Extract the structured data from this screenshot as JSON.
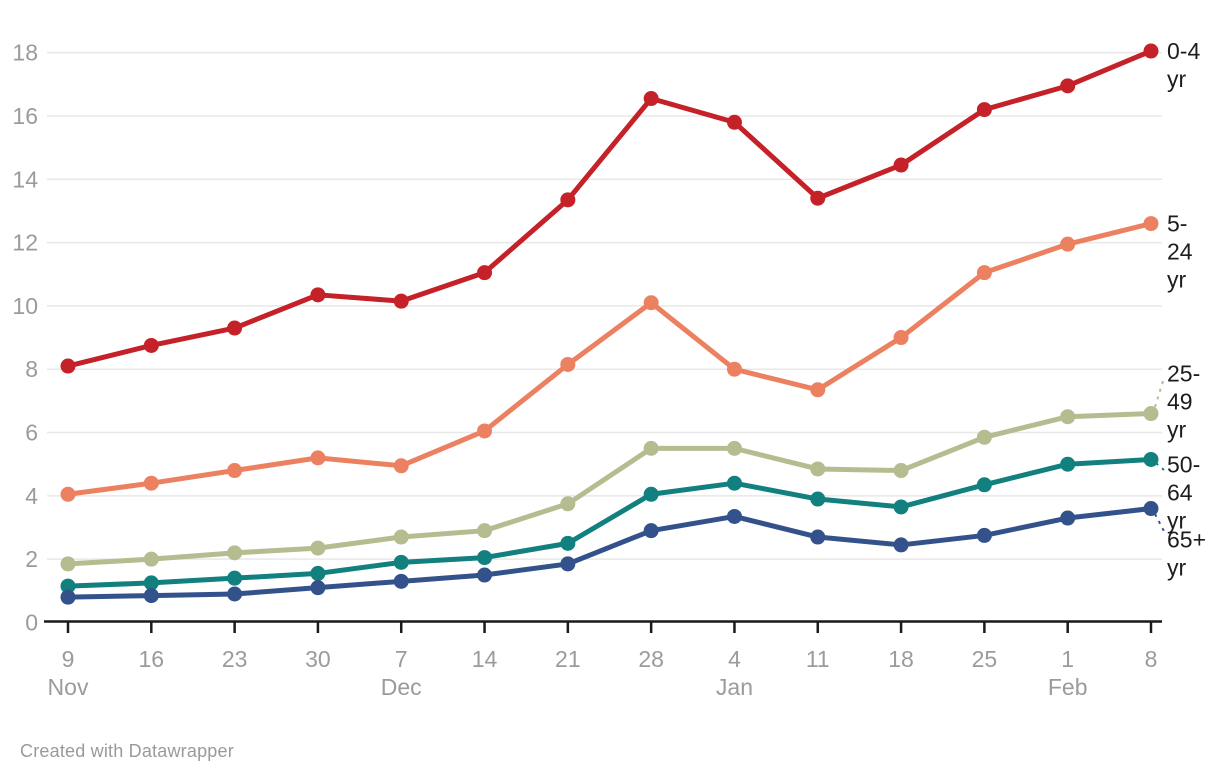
{
  "footer": {
    "credit": "Created with Datawrapper"
  },
  "colors": {
    "grid": "#e8e8e8",
    "axis_line": "#1a1a1a",
    "axis_text": "#9b9b9b",
    "label_text": "#1d1d1d",
    "footer_text": "#9a9a9a",
    "background": "#ffffff"
  },
  "chart_data": {
    "type": "line",
    "title": "",
    "xlabel": "",
    "ylabel": "",
    "ylim": [
      0,
      18
    ],
    "y_ticks": [
      0,
      2,
      4,
      6,
      8,
      10,
      12,
      14,
      16,
      18
    ],
    "grid": true,
    "legend_position": "right-edge-labels",
    "x_tick_days": [
      "9",
      "16",
      "23",
      "30",
      "7",
      "14",
      "21",
      "28",
      "4",
      "11",
      "18",
      "25",
      "1",
      "8"
    ],
    "x_months": [
      {
        "label": "Nov",
        "index": 0
      },
      {
        "label": "Dec",
        "index": 4
      },
      {
        "label": "Jan",
        "index": 8
      },
      {
        "label": "Feb",
        "index": 12
      }
    ],
    "series": [
      {
        "name": "0-4 yr",
        "label_lines": [
          "0-4",
          "yr"
        ],
        "color": "#c42128",
        "values": [
          8.1,
          8.75,
          9.3,
          10.35,
          10.15,
          11.05,
          13.35,
          16.55,
          15.8,
          13.4,
          14.45,
          16.2,
          16.95,
          18.05
        ]
      },
      {
        "name": "5-24 yr",
        "label_lines": [
          "5-",
          "24",
          "yr"
        ],
        "color": "#ec8161",
        "values": [
          4.05,
          4.4,
          4.8,
          5.2,
          4.95,
          6.05,
          8.15,
          10.1,
          8.0,
          7.35,
          9.0,
          11.05,
          11.95,
          12.6
        ]
      },
      {
        "name": "25-49 yr",
        "label_lines": [
          "25-",
          "49",
          "yr"
        ],
        "color": "#b5bc8f",
        "values": [
          1.85,
          2.0,
          2.2,
          2.35,
          2.7,
          2.9,
          3.75,
          5.5,
          5.5,
          4.85,
          4.8,
          5.85,
          6.5,
          6.6
        ]
      },
      {
        "name": "50-64 yr",
        "label_lines": [
          "50-",
          "64",
          "yr"
        ],
        "color": "#12807f",
        "values": [
          1.15,
          1.25,
          1.4,
          1.55,
          1.9,
          2.05,
          2.5,
          4.05,
          4.4,
          3.9,
          3.65,
          4.35,
          5.0,
          5.15
        ]
      },
      {
        "name": "65+ yr",
        "label_lines": [
          "65+",
          "yr"
        ],
        "color": "#33528b",
        "values": [
          0.8,
          0.85,
          0.9,
          1.1,
          1.3,
          1.5,
          1.85,
          2.9,
          3.35,
          2.7,
          2.45,
          2.75,
          3.3,
          3.6
        ]
      }
    ]
  }
}
